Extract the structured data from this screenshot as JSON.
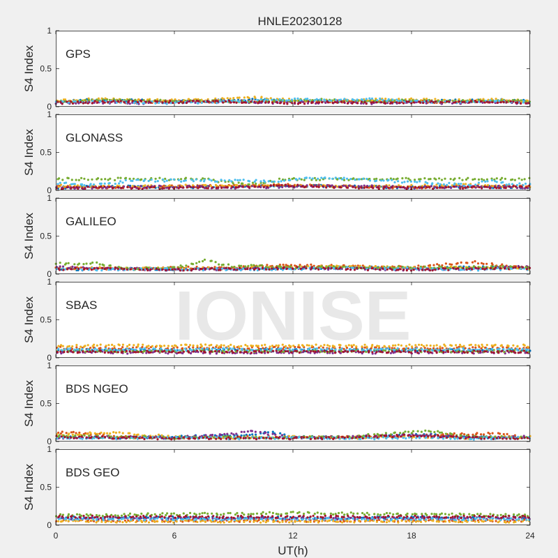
{
  "figure": {
    "title": "HNLE20230128",
    "xlabel": "UT(h)",
    "ylabel": "S4 Index",
    "watermark": "IONISE",
    "xticks": [
      0,
      6,
      12,
      18,
      24
    ],
    "xtick_labels": [
      "0",
      "6",
      "12",
      "18",
      "24"
    ],
    "yticks": [
      0,
      0.5,
      1
    ],
    "ytick_labels": [
      "0",
      "0.5",
      "1"
    ]
  },
  "colors": [
    "#0072BD",
    "#D95319",
    "#EDB120",
    "#7E2F8E",
    "#77AC30",
    "#4DBEEE",
    "#A2142F"
  ],
  "chart_data": [
    {
      "type": "scatter",
      "panel": "GPS",
      "xlim": [
        0,
        24
      ],
      "ylim": [
        0,
        1
      ],
      "grid": false,
      "series": [
        {
          "x": [
            0,
            2,
            4,
            6,
            8,
            10,
            12,
            14,
            16,
            18,
            20,
            22,
            24
          ],
          "y": [
            0.07,
            0.09,
            0.08,
            0.07,
            0.08,
            0.09,
            0.08,
            0.07,
            0.08,
            0.07,
            0.08,
            0.09,
            0.07
          ]
        },
        {
          "x": [
            0,
            2,
            4,
            6,
            8,
            10,
            12,
            14,
            16,
            18,
            20,
            22,
            24
          ],
          "y": [
            0.06,
            0.07,
            0.06,
            0.07,
            0.06,
            0.07,
            0.06,
            0.07,
            0.06,
            0.07,
            0.06,
            0.07,
            0.06
          ]
        },
        {
          "x": [
            0,
            2,
            4,
            6,
            8,
            10,
            12,
            14,
            16,
            18,
            20,
            22,
            24
          ],
          "y": [
            0.08,
            0.1,
            0.09,
            0.08,
            0.1,
            0.12,
            0.09,
            0.08,
            0.09,
            0.1,
            0.08,
            0.09,
            0.08
          ]
        },
        {
          "x": [
            0,
            2,
            4,
            6,
            8,
            10,
            12,
            14,
            16,
            18,
            20,
            22,
            24
          ],
          "y": [
            0.05,
            0.06,
            0.05,
            0.06,
            0.07,
            0.06,
            0.05,
            0.06,
            0.05,
            0.06,
            0.05,
            0.06,
            0.05
          ]
        },
        {
          "x": [
            0,
            2,
            4,
            6,
            8,
            10,
            12,
            14,
            16,
            18,
            20,
            22,
            24
          ],
          "y": [
            0.07,
            0.08,
            0.09,
            0.07,
            0.08,
            0.07,
            0.08,
            0.09,
            0.07,
            0.08,
            0.07,
            0.08,
            0.07
          ]
        },
        {
          "x": [
            0,
            2,
            4,
            6,
            8,
            10,
            12,
            14,
            16,
            18,
            20,
            22,
            24
          ],
          "y": [
            0.06,
            0.07,
            0.06,
            0.05,
            0.06,
            0.08,
            0.1,
            0.09,
            0.1,
            0.07,
            0.06,
            0.07,
            0.06
          ]
        },
        {
          "x": [
            0,
            2,
            4,
            6,
            8,
            10,
            12,
            14,
            16,
            18,
            20,
            22,
            24
          ],
          "y": [
            0.05,
            0.06,
            0.07,
            0.06,
            0.07,
            0.06,
            0.05,
            0.06,
            0.05,
            0.06,
            0.07,
            0.06,
            0.05
          ]
        }
      ]
    },
    {
      "type": "scatter",
      "panel": "GLONASS",
      "xlim": [
        0,
        24
      ],
      "ylim": [
        0,
        1
      ],
      "grid": false,
      "series": [
        {
          "x": [
            0,
            3,
            6,
            9,
            12,
            15,
            18,
            21,
            24
          ],
          "y": [
            0.04,
            0.05,
            0.04,
            0.05,
            0.06,
            0.05,
            0.04,
            0.05,
            0.04
          ]
        },
        {
          "x": [
            0,
            3,
            6,
            9,
            12,
            15,
            18,
            21,
            24
          ],
          "y": [
            0.05,
            0.04,
            0.05,
            0.06,
            0.07,
            0.05,
            0.04,
            0.05,
            0.06
          ]
        },
        {
          "x": [
            0,
            3,
            6,
            9,
            12,
            15,
            18,
            21,
            24
          ],
          "y": [
            0.06,
            0.05,
            0.06,
            0.07,
            0.06,
            0.05,
            0.06,
            0.07,
            0.05
          ]
        },
        {
          "x": [
            0,
            3,
            6,
            9,
            12,
            15,
            18,
            21,
            24
          ],
          "y": [
            0.03,
            0.04,
            0.05,
            0.04,
            0.05,
            0.06,
            0.04,
            0.05,
            0.04
          ]
        },
        {
          "x": [
            7.5,
            8.5,
            9.5,
            10.5,
            11.5
          ],
          "y": [
            0.15,
            0.11,
            0.08,
            0.1,
            0.15
          ]
        },
        {
          "x": [
            0,
            1.5,
            3,
            3.6,
            9.5,
            11,
            13,
            16.5,
            21,
            22,
            23
          ],
          "y": [
            0.1,
            0.07,
            0.09,
            0.13,
            0.13,
            0.12,
            0.17,
            0.13,
            0.07,
            0.13,
            0.08
          ]
        },
        {
          "x": [
            0,
            3,
            6,
            9,
            12,
            15,
            18,
            21,
            24
          ],
          "y": [
            0.03,
            0.04,
            0.03,
            0.05,
            0.06,
            0.04,
            0.03,
            0.04,
            0.05
          ]
        }
      ]
    },
    {
      "type": "scatter",
      "panel": "GALILEO",
      "xlim": [
        0,
        24
      ],
      "ylim": [
        0,
        1
      ],
      "grid": false,
      "series": [
        {
          "x": [
            0,
            3,
            6,
            9,
            12,
            15,
            18,
            21,
            24
          ],
          "y": [
            0.06,
            0.07,
            0.06,
            0.07,
            0.08,
            0.09,
            0.08,
            0.09,
            0.08
          ]
        },
        {
          "x": [
            0,
            3,
            6,
            9,
            12,
            15,
            18,
            21,
            24
          ],
          "y": [
            0.08,
            0.07,
            0.08,
            0.09,
            0.12,
            0.1,
            0.09,
            0.16,
            0.08
          ]
        },
        {
          "x": [
            0,
            3,
            6,
            9,
            12,
            15,
            18,
            21,
            24
          ],
          "y": [
            0.07,
            0.08,
            0.07,
            0.08,
            0.09,
            0.1,
            0.08,
            0.09,
            0.07
          ]
        },
        {
          "x": [
            0,
            3,
            6,
            9,
            12,
            15,
            18,
            21,
            24
          ],
          "y": [
            0.09,
            0.07,
            0.06,
            0.07,
            0.08,
            0.07,
            0.06,
            0.07,
            0.1
          ]
        },
        {
          "x": [
            2.2,
            3,
            4,
            6,
            7.5,
            9,
            10,
            11
          ],
          "y": [
            0.14,
            0.1,
            0.07,
            0.08,
            0.18,
            0.1,
            0.12,
            0.09
          ]
        },
        {
          "x": [
            0,
            3,
            6,
            9,
            12,
            15,
            18,
            21,
            24
          ],
          "y": [
            0.07,
            0.06,
            0.07,
            0.06,
            0.07,
            0.08,
            0.07,
            0.06,
            0.07
          ]
        },
        {
          "x": [
            0,
            3,
            6,
            9,
            12,
            15,
            18,
            21,
            24
          ],
          "y": [
            0.06,
            0.07,
            0.06,
            0.07,
            0.08,
            0.07,
            0.06,
            0.07,
            0.08
          ]
        }
      ]
    },
    {
      "type": "scatter",
      "panel": "SBAS",
      "xlim": [
        0,
        24
      ],
      "ylim": [
        0,
        1
      ],
      "grid": false,
      "series": [
        {
          "x": [
            0,
            24
          ],
          "y": [
            0.1,
            0.1
          ]
        },
        {
          "x": [
            0,
            24
          ],
          "y": [
            0.13,
            0.13
          ]
        },
        {
          "x": [
            0,
            24
          ],
          "y": [
            0.16,
            0.16
          ]
        },
        {
          "x": [
            0,
            24
          ],
          "y": [
            0.07,
            0.07
          ]
        },
        {
          "x": [
            0,
            24
          ],
          "y": [
            0.09,
            0.09
          ]
        },
        {
          "x": [
            0,
            24
          ],
          "y": [
            0.11,
            0.11
          ]
        },
        {
          "x": [
            0,
            24
          ],
          "y": [
            0.08,
            0.08
          ]
        }
      ]
    },
    {
      "type": "scatter",
      "panel": "BDS NGEO",
      "xlim": [
        0,
        24
      ],
      "ylim": [
        0,
        1
      ],
      "grid": false,
      "series": [
        {
          "x": [
            0,
            3,
            6,
            9,
            11,
            12,
            15,
            18,
            21,
            24
          ],
          "y": [
            0.06,
            0.05,
            0.06,
            0.08,
            0.12,
            0.06,
            0.05,
            0.1,
            0.06,
            0.05
          ]
        },
        {
          "x": [
            0,
            2,
            3,
            6,
            9,
            12,
            15,
            18,
            22,
            24
          ],
          "y": [
            0.12,
            0.1,
            0.06,
            0.05,
            0.06,
            0.05,
            0.06,
            0.07,
            0.11,
            0.05
          ]
        },
        {
          "x": [
            0,
            2.8,
            6,
            9,
            12,
            15,
            18,
            21,
            24
          ],
          "y": [
            0.08,
            0.12,
            0.06,
            0.05,
            0.06,
            0.05,
            0.06,
            0.05,
            0.06
          ]
        },
        {
          "x": [
            0,
            3,
            6,
            9,
            10,
            12,
            15,
            18,
            21,
            24
          ],
          "y": [
            0.05,
            0.06,
            0.05,
            0.1,
            0.13,
            0.05,
            0.06,
            0.09,
            0.05,
            0.06
          ]
        },
        {
          "x": [
            0,
            3,
            6,
            9,
            12,
            15,
            16.5,
            19,
            21,
            24
          ],
          "y": [
            0.07,
            0.06,
            0.05,
            0.06,
            0.05,
            0.06,
            0.1,
            0.14,
            0.06,
            0.05
          ]
        },
        {
          "x": [
            0,
            3,
            6,
            9,
            12,
            15,
            18,
            21,
            24
          ],
          "y": [
            0.05,
            0.04,
            0.05,
            0.04,
            0.05,
            0.04,
            0.05,
            0.04,
            0.05
          ]
        },
        {
          "x": [
            0,
            3,
            6,
            9,
            12,
            15,
            18,
            21,
            24
          ],
          "y": [
            0.06,
            0.05,
            0.04,
            0.05,
            0.04,
            0.05,
            0.08,
            0.05,
            0.04
          ]
        }
      ]
    },
    {
      "type": "scatter",
      "panel": "BDS GEO",
      "xlim": [
        0,
        24
      ],
      "ylim": [
        0,
        1
      ],
      "grid": false,
      "series": [
        {
          "x": [
            0,
            24
          ],
          "y": [
            0.1,
            0.1
          ]
        },
        {
          "x": [
            0,
            24
          ],
          "y": [
            0.06,
            0.06
          ]
        },
        {
          "x": [
            0,
            24
          ],
          "y": [
            0.05,
            0.05
          ]
        },
        {
          "x": [
            0,
            24
          ],
          "y": [
            0.09,
            0.09
          ]
        },
        {
          "x": [
            0,
            4,
            8,
            12,
            16,
            20,
            24
          ],
          "y": [
            0.13,
            0.14,
            0.15,
            0.16,
            0.15,
            0.14,
            0.13
          ]
        },
        {
          "x": [
            0,
            24
          ],
          "y": [
            0.08,
            0.08
          ]
        },
        {
          "x": [
            0,
            24
          ],
          "y": [
            0.11,
            0.11
          ]
        }
      ]
    }
  ]
}
